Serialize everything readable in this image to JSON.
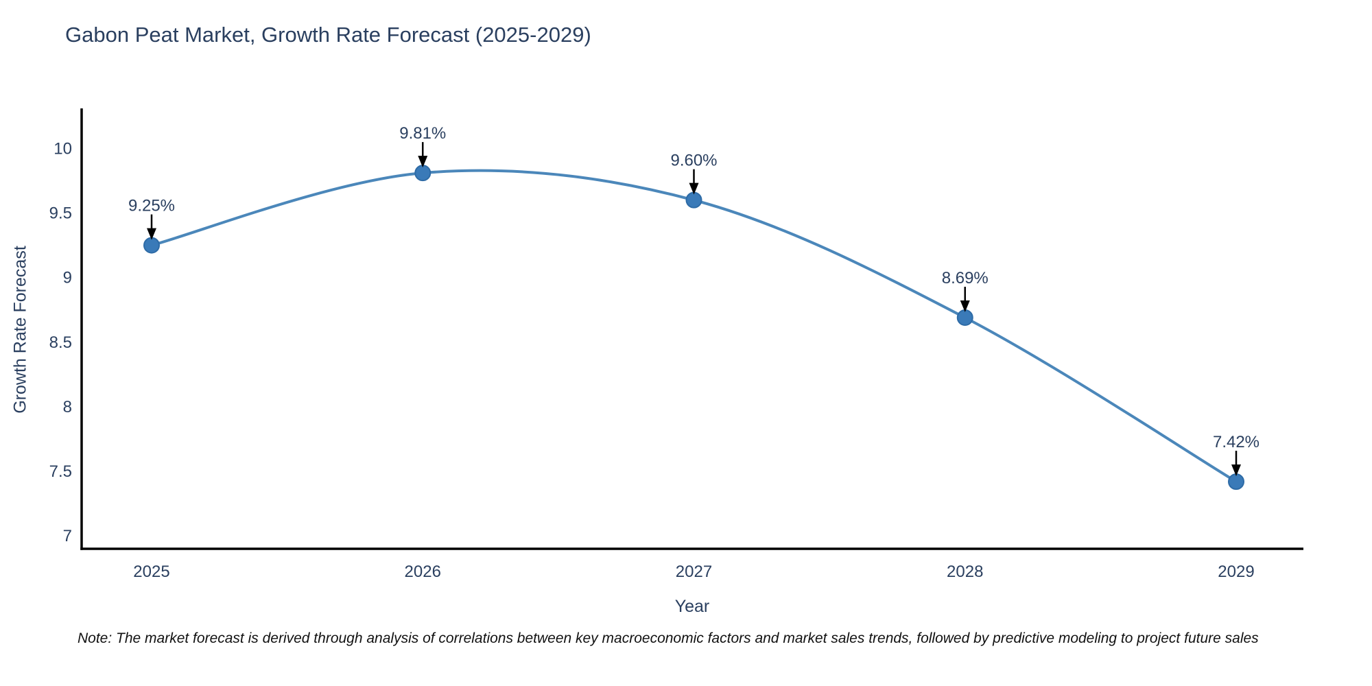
{
  "chart_data": {
    "type": "line",
    "title": "Gabon Peat Market, Growth Rate Forecast (2025-2029)",
    "xlabel": "Year",
    "ylabel": "Growth Rate Forecast",
    "categories": [
      "2025",
      "2026",
      "2027",
      "2028",
      "2029"
    ],
    "series": [
      {
        "name": "Growth Rate Forecast",
        "values": [
          9.25,
          9.81,
          9.6,
          8.69,
          7.42
        ],
        "point_labels": [
          "9.25%",
          "9.81%",
          "9.60%",
          "8.69%",
          "7.42%"
        ]
      }
    ],
    "yticks": [
      7,
      7.5,
      8,
      8.5,
      9,
      9.5,
      10
    ],
    "ylim": [
      6.9,
      10.31
    ],
    "grid": false,
    "legend_position": "none",
    "line_shape": "spline",
    "colors": {
      "line": "#4b87ba",
      "marker_fill": "#3a7ab8",
      "marker_edge": "#2e6ba6",
      "axis": "#000000",
      "text": "#2a3f5f",
      "annotation_arrow": "#000000",
      "note_text": "#111111"
    },
    "note": "Note: The market forecast is derived through analysis of correlations between key macroeconomic factors and market sales trends, followed by predictive modeling to project future sales"
  }
}
